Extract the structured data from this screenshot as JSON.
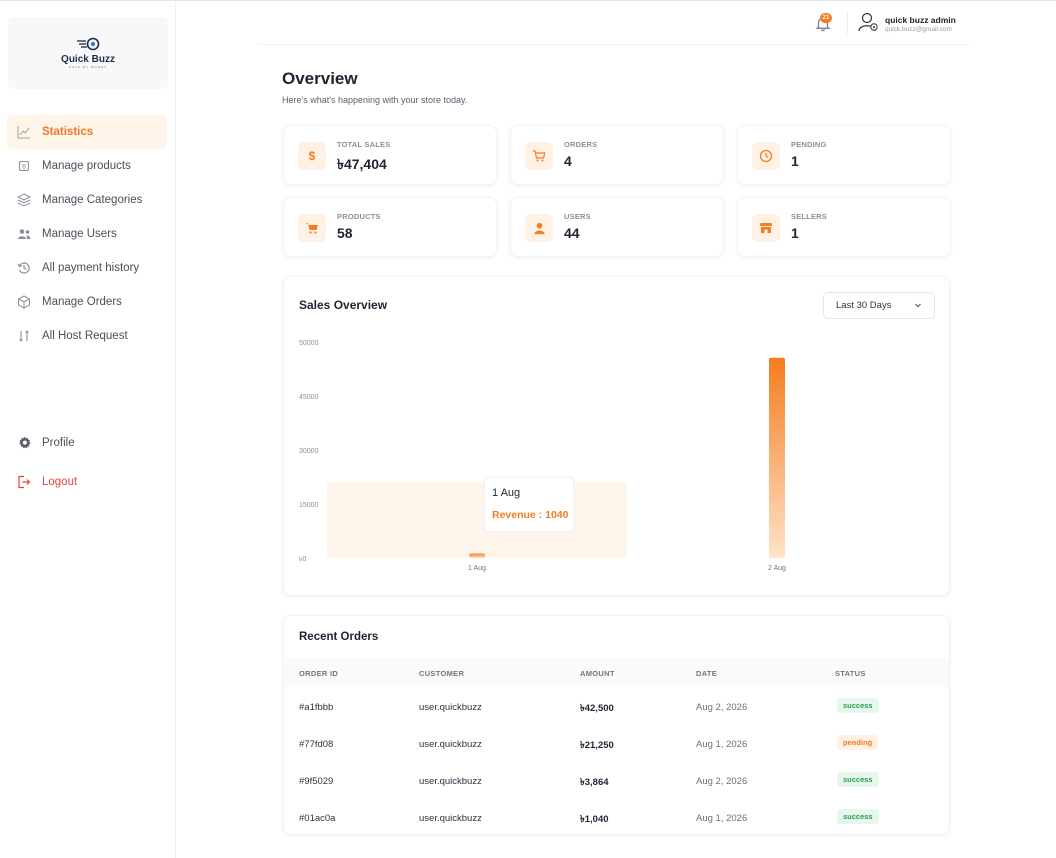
{
  "brand": {
    "name": "Quick Buzz",
    "tagline": "SAVE MY MONEY"
  },
  "sidebar": {
    "items": [
      {
        "label": "Statistics",
        "icon": "line-chart-icon",
        "active": true
      },
      {
        "label": "Manage products",
        "icon": "product-icon"
      },
      {
        "label": "Manage Categories",
        "icon": "layers-icon"
      },
      {
        "label": "Manage Users",
        "icon": "users-icon"
      },
      {
        "label": "All payment history",
        "icon": "history-icon"
      },
      {
        "label": "Manage Orders",
        "icon": "box-icon"
      },
      {
        "label": "All Host Request",
        "icon": "swap-icon"
      }
    ],
    "bottom": [
      {
        "label": "Profile",
        "icon": "gear-icon"
      },
      {
        "label": "Logout",
        "icon": "logout-icon"
      }
    ]
  },
  "header": {
    "notifications": "21",
    "user_name": "quick buzz admin",
    "user_email": "quick.buzz@gmail.com"
  },
  "overview": {
    "title": "Overview",
    "subtitle": "Here's what's happening with your store today."
  },
  "stats": [
    {
      "label": "TOTAL SALES",
      "value": "৳47,404",
      "icon": "dollar-icon"
    },
    {
      "label": "ORDERS",
      "value": "4",
      "icon": "cart-icon"
    },
    {
      "label": "PENDING",
      "value": "1",
      "icon": "clock-icon"
    },
    {
      "label": "PRODUCTS",
      "value": "58",
      "icon": "product-cart-icon"
    },
    {
      "label": "USERS",
      "value": "44",
      "icon": "user-icon"
    },
    {
      "label": "SELLERS",
      "value": "1",
      "icon": "store-icon"
    }
  ],
  "sales": {
    "title": "Sales Overview",
    "range": "Last 30 Days"
  },
  "chart_data": {
    "type": "bar",
    "title": "Sales Overview",
    "categories": [
      "1 Aug",
      "2 Aug"
    ],
    "series": [
      {
        "values": [
          1040,
          46364
        ]
      }
    ],
    "yticks": [
      "50000",
      "45000",
      "30000",
      "15000",
      "৳0"
    ],
    "tooltip": {
      "title": "1 Aug",
      "text": "Revenue : 1040"
    },
    "colors": {
      "bar": "#f57c1f",
      "hover": "#fff6eb"
    }
  },
  "orders": {
    "title": "Recent Orders",
    "columns": [
      "ORDER ID",
      "CUSTOMER",
      "AMOUNT",
      "DATE",
      "STATUS"
    ],
    "rows": [
      {
        "id": "#a1fbbb",
        "customer": "user.quickbuzz",
        "amount": "৳42,500",
        "date": "Aug 2, 2026",
        "status": "success"
      },
      {
        "id": "#77fd08",
        "customer": "user.quickbuzz",
        "amount": "৳21,250",
        "date": "Aug 1, 2026",
        "status": "pending"
      },
      {
        "id": "#9f5029",
        "customer": "user.quickbuzz",
        "amount": "৳3,864",
        "date": "Aug 2, 2026",
        "status": "success"
      },
      {
        "id": "#01ac0a",
        "customer": "user.quickbuzz",
        "amount": "৳1,040",
        "date": "Aug 1, 2026",
        "status": "success"
      }
    ]
  }
}
